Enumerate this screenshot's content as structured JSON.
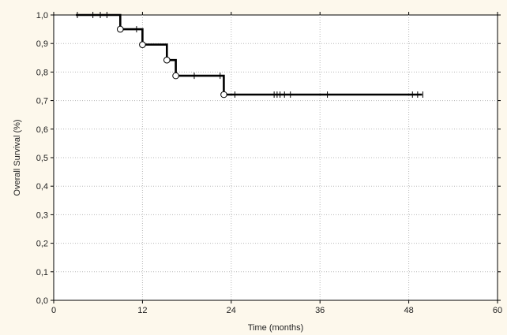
{
  "chart_data": {
    "type": "line",
    "title": "",
    "xlabel": "Time (months)",
    "ylabel": "Overall Survival (%)",
    "xlim": [
      0,
      60
    ],
    "ylim": [
      0.0,
      1.0
    ],
    "x_ticks": [
      0,
      12,
      24,
      36,
      48,
      60
    ],
    "x_tick_labels": [
      "0",
      "12",
      "24",
      "36",
      "48",
      "60"
    ],
    "y_ticks": [
      0.0,
      0.1,
      0.2,
      0.3,
      0.4,
      0.5,
      0.6,
      0.7,
      0.8,
      0.9,
      1.0
    ],
    "y_tick_labels": [
      "0,0",
      "0,1",
      "0,2",
      "0,3",
      "0,4",
      "0,5",
      "0,6",
      "0,7",
      "0,8",
      "0,9",
      "1,0"
    ],
    "grid": true,
    "series": [
      {
        "step_points": [
          {
            "x": 3.0,
            "y": 1.0
          },
          {
            "x": 9.0,
            "y": 1.0
          },
          {
            "x": 9.0,
            "y": 0.95
          },
          {
            "x": 12.0,
            "y": 0.95
          },
          {
            "x": 12.0,
            "y": 0.896
          },
          {
            "x": 15.3,
            "y": 0.896
          },
          {
            "x": 15.3,
            "y": 0.842
          },
          {
            "x": 16.5,
            "y": 0.842
          },
          {
            "x": 16.5,
            "y": 0.787
          },
          {
            "x": 23.0,
            "y": 0.787
          },
          {
            "x": 23.0,
            "y": 0.721
          },
          {
            "x": 49.8,
            "y": 0.721
          }
        ],
        "event_points": [
          {
            "x": 9.0,
            "y": 0.95
          },
          {
            "x": 12.0,
            "y": 0.896
          },
          {
            "x": 15.3,
            "y": 0.842
          },
          {
            "x": 16.5,
            "y": 0.787
          },
          {
            "x": 23.0,
            "y": 0.721
          }
        ],
        "censor_points": [
          {
            "x": 3.2,
            "y": 1.0
          },
          {
            "x": 5.3,
            "y": 1.0
          },
          {
            "x": 6.3,
            "y": 1.0
          },
          {
            "x": 7.2,
            "y": 1.0
          },
          {
            "x": 11.2,
            "y": 0.95
          },
          {
            "x": 19.0,
            "y": 0.787
          },
          {
            "x": 22.5,
            "y": 0.787
          },
          {
            "x": 24.5,
            "y": 0.721
          },
          {
            "x": 29.8,
            "y": 0.721
          },
          {
            "x": 30.2,
            "y": 0.721
          },
          {
            "x": 30.6,
            "y": 0.721
          },
          {
            "x": 31.2,
            "y": 0.721
          },
          {
            "x": 32.0,
            "y": 0.721
          },
          {
            "x": 37.0,
            "y": 0.721
          },
          {
            "x": 48.5,
            "y": 0.721
          },
          {
            "x": 49.2,
            "y": 0.721
          },
          {
            "x": 49.9,
            "y": 0.721
          }
        ]
      }
    ]
  }
}
